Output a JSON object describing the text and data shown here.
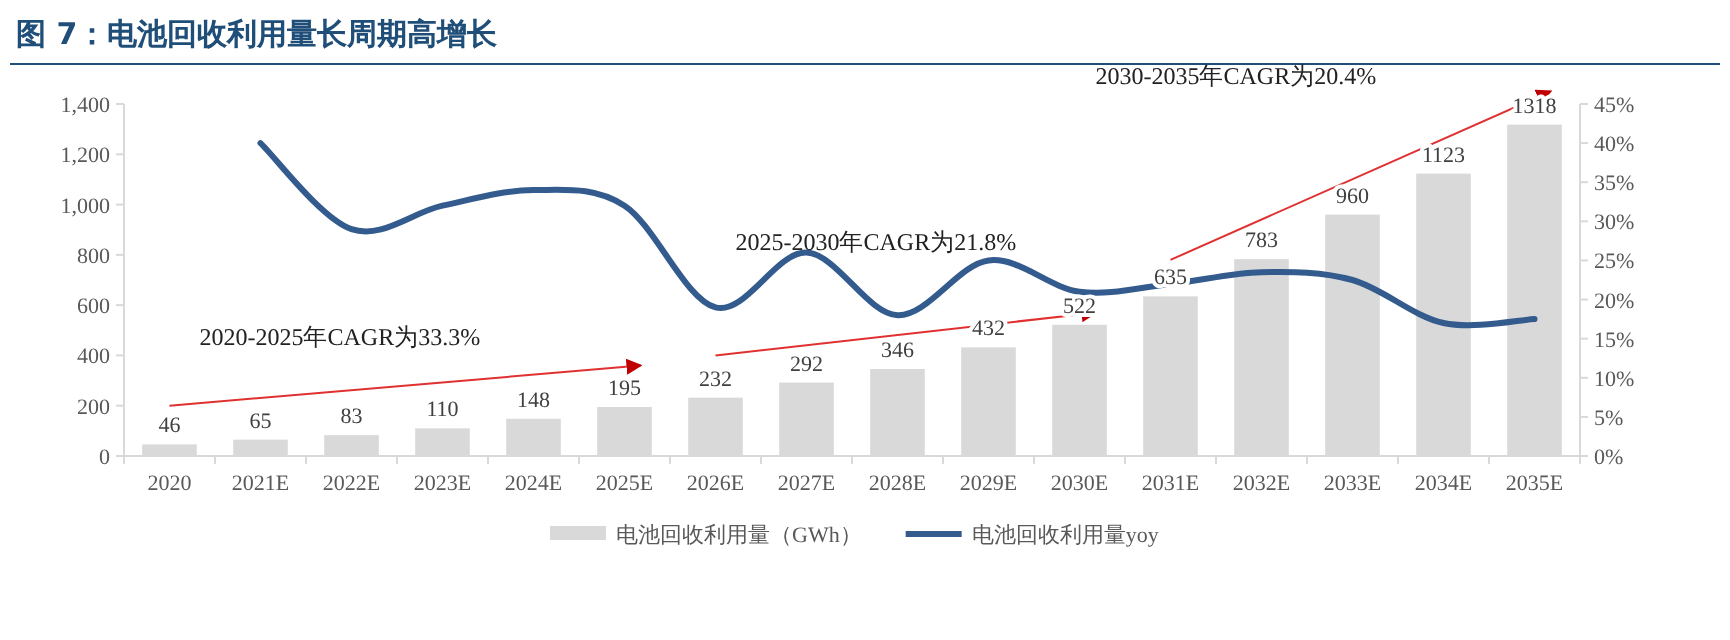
{
  "chart_data": {
    "type": "bar",
    "title": "图 7：电池回收利用量长周期高增长",
    "categories": [
      "2020",
      "2021E",
      "2022E",
      "2023E",
      "2024E",
      "2025E",
      "2026E",
      "2027E",
      "2028E",
      "2029E",
      "2030E",
      "2031E",
      "2032E",
      "2033E",
      "2034E",
      "2035E"
    ],
    "series": [
      {
        "name": "电池回收利用量（GWh）",
        "color": "#d9d9d9",
        "values": [
          46,
          65,
          83,
          110,
          148,
          195,
          232,
          292,
          346,
          432,
          522,
          635,
          783,
          960,
          1123,
          1318
        ],
        "value_labels": [
          "46",
          "65",
          "83",
          "110",
          "148",
          "195",
          "232",
          "292",
          "346",
          "432",
          "522",
          "635",
          "783",
          "960",
          "1123",
          "1318"
        ]
      },
      {
        "name": "电池回收利用量yoy",
        "type": "line",
        "axis": "y2",
        "color": "#335b8e",
        "values": [
          null,
          40,
          29,
          32,
          34,
          32,
          19,
          26,
          18,
          25,
          21,
          22,
          23.5,
          22.5,
          17,
          17.5
        ]
      }
    ],
    "ylim": [
      0,
      1400
    ],
    "yticks": [
      {
        "value": 0,
        "label": "0"
      },
      {
        "value": 200,
        "label": "200"
      },
      {
        "value": 400,
        "label": "400"
      },
      {
        "value": 600,
        "label": "600"
      },
      {
        "value": 800,
        "label": "800"
      },
      {
        "value": 1000,
        "label": "1,000"
      },
      {
        "value": 1200,
        "label": "1,200"
      },
      {
        "value": 1400,
        "label": "1,400"
      }
    ],
    "y2lim": [
      0,
      45
    ],
    "y2ticks": [
      {
        "value": 0,
        "label": "0%"
      },
      {
        "value": 5,
        "label": "5%"
      },
      {
        "value": 10,
        "label": "10%"
      },
      {
        "value": 15,
        "label": "15%"
      },
      {
        "value": 20,
        "label": "20%"
      },
      {
        "value": 25,
        "label": "25%"
      },
      {
        "value": 30,
        "label": "30%"
      },
      {
        "value": 35,
        "label": "35%"
      },
      {
        "value": 40,
        "label": "40%"
      },
      {
        "value": 45,
        "label": "45%"
      }
    ],
    "annotations": [
      "2020-2025年CAGR为33.3%",
      "2025-2030年CAGR为21.8%",
      "2030-2035年CAGR为20.4%"
    ],
    "grid": false,
    "legend": "bottom",
    "marker": "none",
    "line_style": "solid"
  }
}
